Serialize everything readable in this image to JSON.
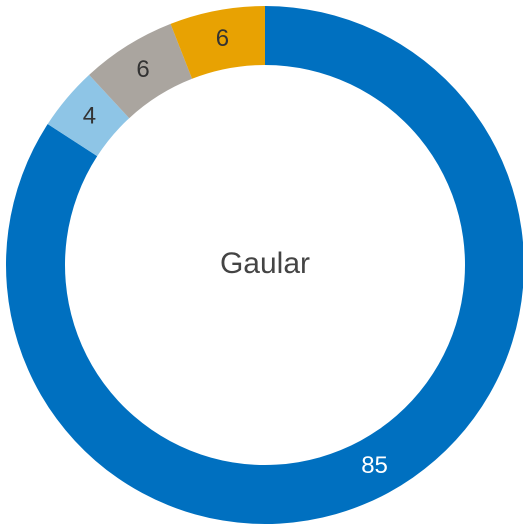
{
  "chart_data": {
    "type": "donut",
    "center_label": "Gaular",
    "values": [
      85,
      4,
      6,
      6
    ],
    "colors": [
      "#0070c0",
      "#8ec5e6",
      "#aaa59f",
      "#e8a202"
    ]
  }
}
